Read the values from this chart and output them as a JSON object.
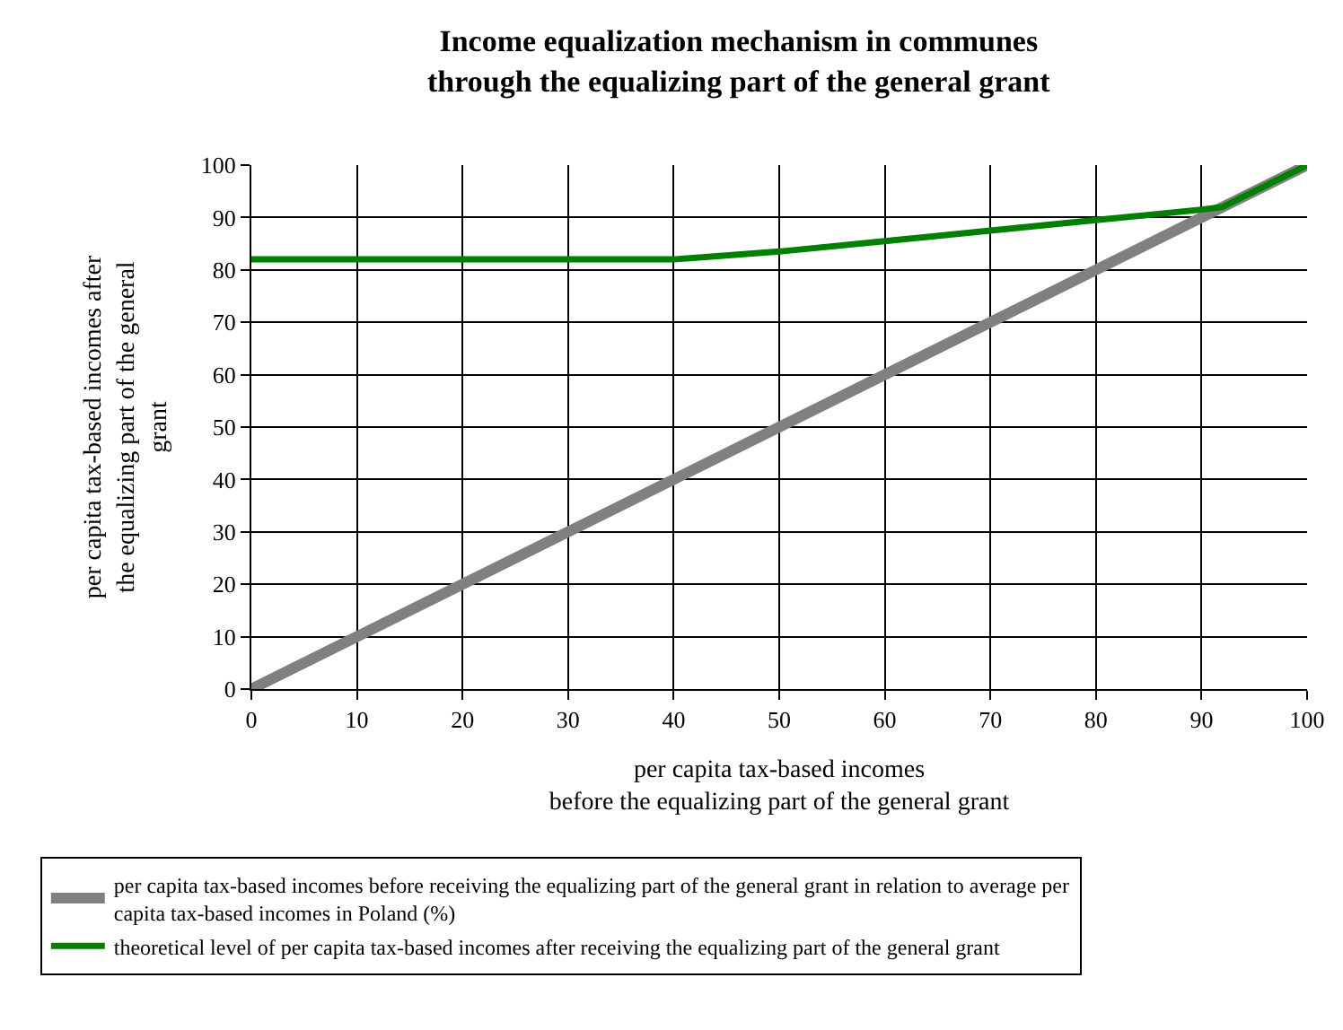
{
  "chart_data": {
    "type": "line",
    "title": "Income equalization mechanism in communes\nthrough the equalizing part of the general grant",
    "xlabel": "per capita tax-based incomes\nbefore the equalizing part of the general grant",
    "ylabel": "per capita tax-based incomes after\nthe equalizing part of the general\ngrant",
    "series": [
      {
        "name": "per capita tax-based incomes before receiving the equalizing part of the general grant in relation to average per capita tax-based incomes in Poland (%)",
        "color": "#808080",
        "x": [
          0,
          100
        ],
        "values": [
          0,
          100
        ]
      },
      {
        "name": "theoretical level of per capita tax-based incomes after receiving the equalizing part of the general grant",
        "color": "#008000",
        "x": [
          0,
          40,
          50,
          60,
          70,
          80,
          90,
          92,
          100
        ],
        "values": [
          82,
          82,
          83.5,
          85.5,
          87.5,
          89.5,
          91.5,
          92,
          100
        ]
      }
    ],
    "xlim": [
      0,
      100
    ],
    "xticks": [
      0,
      10,
      20,
      30,
      40,
      50,
      60,
      70,
      80,
      90,
      100
    ],
    "ylim": [
      0,
      100
    ],
    "yticks": [
      0,
      10,
      20,
      30,
      40,
      50,
      60,
      70,
      80,
      90,
      100
    ],
    "grid": true,
    "legend": "bottom",
    "marker": "none",
    "line_style": "solid"
  }
}
